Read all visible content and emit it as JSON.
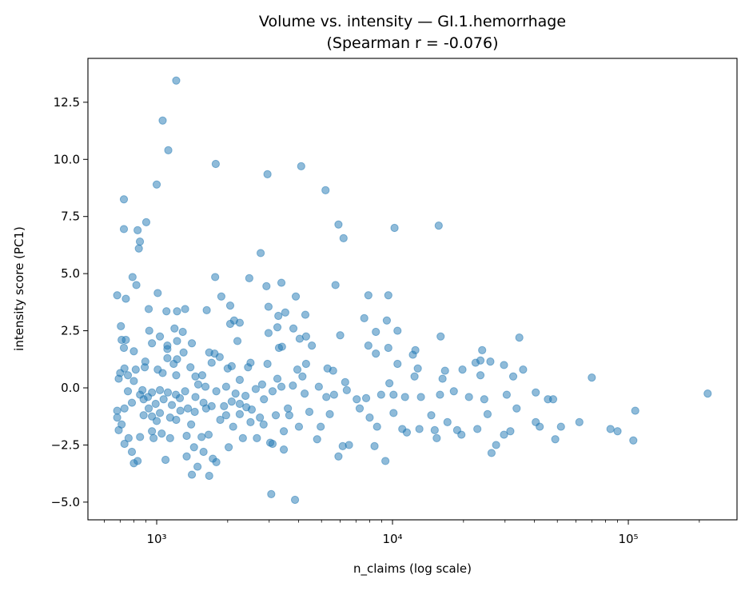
{
  "chart_data": {
    "type": "scatter",
    "title": "Volume vs. intensity — GI.1.hemorrhage",
    "subtitle": "(Spearman r = -0.076)",
    "xlabel": "n_claims (log scale)",
    "ylabel": "intensity score (PC1)",
    "xscale": "log",
    "xlim": [
      511,
      289000
    ],
    "ylim": [
      -5.775,
      14.42
    ],
    "grid": false,
    "legend": "none",
    "marker_color": "#1f77b4",
    "marker_alpha": 0.5,
    "x_ticks": [
      {
        "value": 1000,
        "label": "10³"
      },
      {
        "value": 10000,
        "label": "10⁴"
      },
      {
        "value": 100000,
        "label": "10⁵"
      }
    ],
    "y_ticks": [
      {
        "value": -5.0,
        "label": "−5.0"
      },
      {
        "value": -2.5,
        "label": "−2.5"
      },
      {
        "value": 0.0,
        "label": "0.0"
      },
      {
        "value": 2.5,
        "label": "2.5"
      },
      {
        "value": 5.0,
        "label": "5.0"
      },
      {
        "value": 7.5,
        "label": "7.5"
      },
      {
        "value": 10.0,
        "label": "10.0"
      },
      {
        "value": 12.5,
        "label": "12.5"
      }
    ],
    "points": [
      [
        1210,
        13.45
      ],
      [
        1060,
        11.7
      ],
      [
        1120,
        10.4
      ],
      [
        1780,
        9.8
      ],
      [
        1000,
        8.9
      ],
      [
        2950,
        9.35
      ],
      [
        4100,
        9.7
      ],
      [
        5200,
        8.65
      ],
      [
        726,
        8.25
      ],
      [
        903,
        7.25
      ],
      [
        726,
        6.95
      ],
      [
        830,
        6.9
      ],
      [
        849,
        6.4
      ],
      [
        840,
        6.1
      ],
      [
        5900,
        7.15
      ],
      [
        6200,
        6.55
      ],
      [
        10200,
        7.0
      ],
      [
        15700,
        7.1
      ],
      [
        2760,
        5.9
      ],
      [
        680,
        4.05
      ],
      [
        740,
        3.9
      ],
      [
        790,
        4.85
      ],
      [
        820,
        4.5
      ],
      [
        1010,
        4.15
      ],
      [
        1770,
        4.85
      ],
      [
        1880,
        4.0
      ],
      [
        2470,
        4.8
      ],
      [
        2920,
        4.45
      ],
      [
        3380,
        4.6
      ],
      [
        3890,
        4.0
      ],
      [
        5730,
        4.5
      ],
      [
        7900,
        4.05
      ],
      [
        9600,
        4.05
      ],
      [
        925,
        3.45
      ],
      [
        1100,
        3.35
      ],
      [
        1220,
        3.35
      ],
      [
        1320,
        3.45
      ],
      [
        1630,
        3.4
      ],
      [
        2050,
        3.6
      ],
      [
        2980,
        3.55
      ],
      [
        3510,
        3.3
      ],
      [
        4270,
        3.2
      ],
      [
        7590,
        3.05
      ],
      [
        9460,
        2.95
      ],
      [
        705,
        2.7
      ],
      [
        930,
        2.5
      ],
      [
        1032,
        2.25
      ],
      [
        1190,
        2.6
      ],
      [
        1290,
        2.45
      ],
      [
        2050,
        2.8
      ],
      [
        2130,
        2.95
      ],
      [
        2250,
        2.85
      ],
      [
        3280,
        3.15
      ],
      [
        3250,
        2.65
      ],
      [
        3800,
        2.6
      ],
      [
        2980,
        2.4
      ],
      [
        4040,
        2.15
      ],
      [
        4300,
        2.25
      ],
      [
        6000,
        2.3
      ],
      [
        8500,
        2.45
      ],
      [
        10500,
        2.5
      ],
      [
        16000,
        2.25
      ],
      [
        34500,
        2.2
      ],
      [
        710,
        2.1
      ],
      [
        740,
        2.1
      ],
      [
        955,
        1.95
      ],
      [
        1220,
        2.05
      ],
      [
        1110,
        1.85
      ],
      [
        1410,
        1.95
      ],
      [
        2200,
        2.05
      ],
      [
        726,
        1.75
      ],
      [
        800,
        1.6
      ],
      [
        1110,
        1.7
      ],
      [
        1300,
        1.55
      ],
      [
        1670,
        1.55
      ],
      [
        1760,
        1.5
      ],
      [
        1850,
        1.35
      ],
      [
        1710,
        1.1
      ],
      [
        3300,
        1.75
      ],
      [
        3400,
        1.8
      ],
      [
        4550,
        1.85
      ],
      [
        7900,
        1.85
      ],
      [
        8500,
        1.5
      ],
      [
        9600,
        1.75
      ],
      [
        12500,
        1.65
      ],
      [
        12200,
        1.45
      ],
      [
        22500,
        1.1
      ],
      [
        26000,
        1.15
      ],
      [
        24000,
        1.65
      ],
      [
        23600,
        1.2
      ],
      [
        730,
        0.85
      ],
      [
        815,
        0.8
      ],
      [
        890,
        0.9
      ],
      [
        895,
        1.15
      ],
      [
        1110,
        1.3
      ],
      [
        1180,
        1.05
      ],
      [
        1220,
        1.25
      ],
      [
        1390,
        0.9
      ],
      [
        1560,
        0.55
      ],
      [
        2000,
        0.85
      ],
      [
        2080,
        0.95
      ],
      [
        2500,
        1.1
      ],
      [
        2440,
        0.9
      ],
      [
        2950,
        1.05
      ],
      [
        3950,
        0.8
      ],
      [
        4300,
        1.05
      ],
      [
        5300,
        0.85
      ],
      [
        5600,
        0.75
      ],
      [
        10500,
        1.05
      ],
      [
        12800,
        0.85
      ],
      [
        16700,
        0.75
      ],
      [
        16300,
        0.4
      ],
      [
        19800,
        0.8
      ],
      [
        23600,
        0.55
      ],
      [
        32500,
        0.5
      ],
      [
        29700,
        1.0
      ],
      [
        35800,
        0.8
      ],
      [
        70000,
        0.45
      ],
      [
        690,
        0.4
      ],
      [
        700,
        0.65
      ],
      [
        755,
        0.55
      ],
      [
        1010,
        0.8
      ],
      [
        1060,
        0.65
      ],
      [
        1210,
        0.55
      ],
      [
        1460,
        0.5
      ],
      [
        2250,
        0.35
      ],
      [
        3250,
        0.4
      ],
      [
        4150,
        0.5
      ],
      [
        6300,
        0.25
      ],
      [
        9700,
        0.2
      ],
      [
        12400,
        0.5
      ],
      [
        755,
        -0.15
      ],
      [
        800,
        0.3
      ],
      [
        870,
        -0.1
      ],
      [
        955,
        -0.2
      ],
      [
        1032,
        -0.1
      ],
      [
        1115,
        -0.2
      ],
      [
        1206,
        -0.3
      ],
      [
        1320,
        -0.15
      ],
      [
        1500,
        0.15
      ],
      [
        1610,
        0.05
      ],
      [
        1790,
        -0.15
      ],
      [
        1970,
        0.05
      ],
      [
        2160,
        -0.25
      ],
      [
        2380,
        -0.35
      ],
      [
        2630,
        -0.05
      ],
      [
        2800,
        0.15
      ],
      [
        3100,
        -0.15
      ],
      [
        3380,
        0.05
      ],
      [
        3780,
        0.1
      ],
      [
        4240,
        -0.25
      ],
      [
        4870,
        0.05
      ],
      [
        5240,
        -0.4
      ],
      [
        5650,
        -0.3
      ],
      [
        6400,
        -0.1
      ],
      [
        7050,
        -0.5
      ],
      [
        7730,
        -0.45
      ],
      [
        8950,
        -0.3
      ],
      [
        10100,
        -0.3
      ],
      [
        11300,
        -0.4
      ],
      [
        13200,
        -0.4
      ],
      [
        15900,
        -0.3
      ],
      [
        18200,
        -0.15
      ],
      [
        21100,
        -0.4
      ],
      [
        24500,
        -0.5
      ],
      [
        30500,
        -0.3
      ],
      [
        40500,
        -0.2
      ],
      [
        45600,
        -0.5
      ],
      [
        48000,
        -0.5
      ],
      [
        217000,
        -0.25
      ],
      [
        680,
        -1.0
      ],
      [
        680,
        -1.3
      ],
      [
        710,
        -1.6
      ],
      [
        690,
        -1.85
      ],
      [
        730,
        -2.45
      ],
      [
        760,
        -2.2
      ],
      [
        785,
        -2.8
      ],
      [
        800,
        -3.3
      ],
      [
        830,
        -3.2
      ],
      [
        850,
        -2.15
      ],
      [
        880,
        -1.2
      ],
      [
        925,
        -0.9
      ],
      [
        955,
        -1.9
      ],
      [
        970,
        -2.2
      ],
      [
        1000,
        -1.45
      ],
      [
        1050,
        -2.0
      ],
      [
        1090,
        -3.15
      ],
      [
        1140,
        -2.2
      ],
      [
        1210,
        -1.4
      ],
      [
        1260,
        -1.0
      ],
      [
        1340,
        -2.1
      ],
      [
        1400,
        -1.6
      ],
      [
        1340,
        -3.0
      ],
      [
        1410,
        -3.8
      ],
      [
        1490,
        -3.45
      ],
      [
        1440,
        -2.6
      ],
      [
        1550,
        -2.15
      ],
      [
        1580,
        -2.8
      ],
      [
        1660,
        -2.05
      ],
      [
        1670,
        -3.85
      ],
      [
        1730,
        -3.1
      ],
      [
        1790,
        -3.25
      ],
      [
        1860,
        -1.4
      ],
      [
        2020,
        -2.6
      ],
      [
        2110,
        -1.7
      ],
      [
        2250,
        -1.15
      ],
      [
        2320,
        -2.2
      ],
      [
        2500,
        -1.5
      ],
      [
        2660,
        -2.2
      ],
      [
        2840,
        -1.6
      ],
      [
        3030,
        -2.4
      ],
      [
        3100,
        -2.45
      ],
      [
        3060,
        -4.65
      ],
      [
        3460,
        -1.9
      ],
      [
        3460,
        -2.7
      ],
      [
        3650,
        -1.2
      ],
      [
        3860,
        -4.9
      ],
      [
        4010,
        -1.7
      ],
      [
        4440,
        -1.05
      ],
      [
        4790,
        -2.25
      ],
      [
        4960,
        -1.7
      ],
      [
        5420,
        -1.15
      ],
      [
        5900,
        -3.0
      ],
      [
        6150,
        -2.55
      ],
      [
        6540,
        -2.5
      ],
      [
        7260,
        -0.9
      ],
      [
        8000,
        -1.3
      ],
      [
        8390,
        -2.55
      ],
      [
        8600,
        -1.7
      ],
      [
        9330,
        -3.2
      ],
      [
        10100,
        -1.1
      ],
      [
        11000,
        -1.8
      ],
      [
        11500,
        -1.95
      ],
      [
        13000,
        -1.8
      ],
      [
        14600,
        -1.2
      ],
      [
        15100,
        -1.85
      ],
      [
        15400,
        -2.2
      ],
      [
        17100,
        -1.5
      ],
      [
        18800,
        -1.85
      ],
      [
        19600,
        -2.05
      ],
      [
        22900,
        -1.8
      ],
      [
        25300,
        -1.15
      ],
      [
        26300,
        -2.85
      ],
      [
        27500,
        -2.5
      ],
      [
        29700,
        -2.05
      ],
      [
        31600,
        -1.9
      ],
      [
        33600,
        -0.9
      ],
      [
        40500,
        -1.5
      ],
      [
        42100,
        -1.7
      ],
      [
        49000,
        -2.25
      ],
      [
        51800,
        -1.7
      ],
      [
        62000,
        -1.5
      ],
      [
        84000,
        -1.8
      ],
      [
        90000,
        -1.9
      ],
      [
        105000,
        -2.3
      ],
      [
        107000,
        -1.0
      ],
      [
        850,
        -0.3
      ],
      [
        918,
        -0.4
      ],
      [
        990,
        -0.7
      ],
      [
        1070,
        -0.5
      ],
      [
        1160,
        -0.75
      ],
      [
        1254,
        -0.45
      ],
      [
        1356,
        -0.9
      ],
      [
        1460,
        -0.4
      ],
      [
        1580,
        -0.65
      ],
      [
        1710,
        -0.8
      ],
      [
        1930,
        -0.8
      ],
      [
        2080,
        -0.6
      ],
      [
        2250,
        -0.7
      ],
      [
        2530,
        -0.95
      ],
      [
        2850,
        -0.5
      ],
      [
        3200,
        -1.2
      ],
      [
        3600,
        -0.9
      ],
      [
        955,
        -1.25
      ],
      [
        1032,
        -1.1
      ],
      [
        1140,
        -1.3
      ],
      [
        1450,
        -1.05
      ],
      [
        1620,
        -0.9
      ],
      [
        1970,
        -1.2
      ],
      [
        2400,
        -0.85
      ],
      [
        2740,
        -1.3
      ],
      [
        880,
        -0.5
      ],
      [
        785,
        -0.65
      ],
      [
        730,
        -0.9
      ]
    ]
  }
}
